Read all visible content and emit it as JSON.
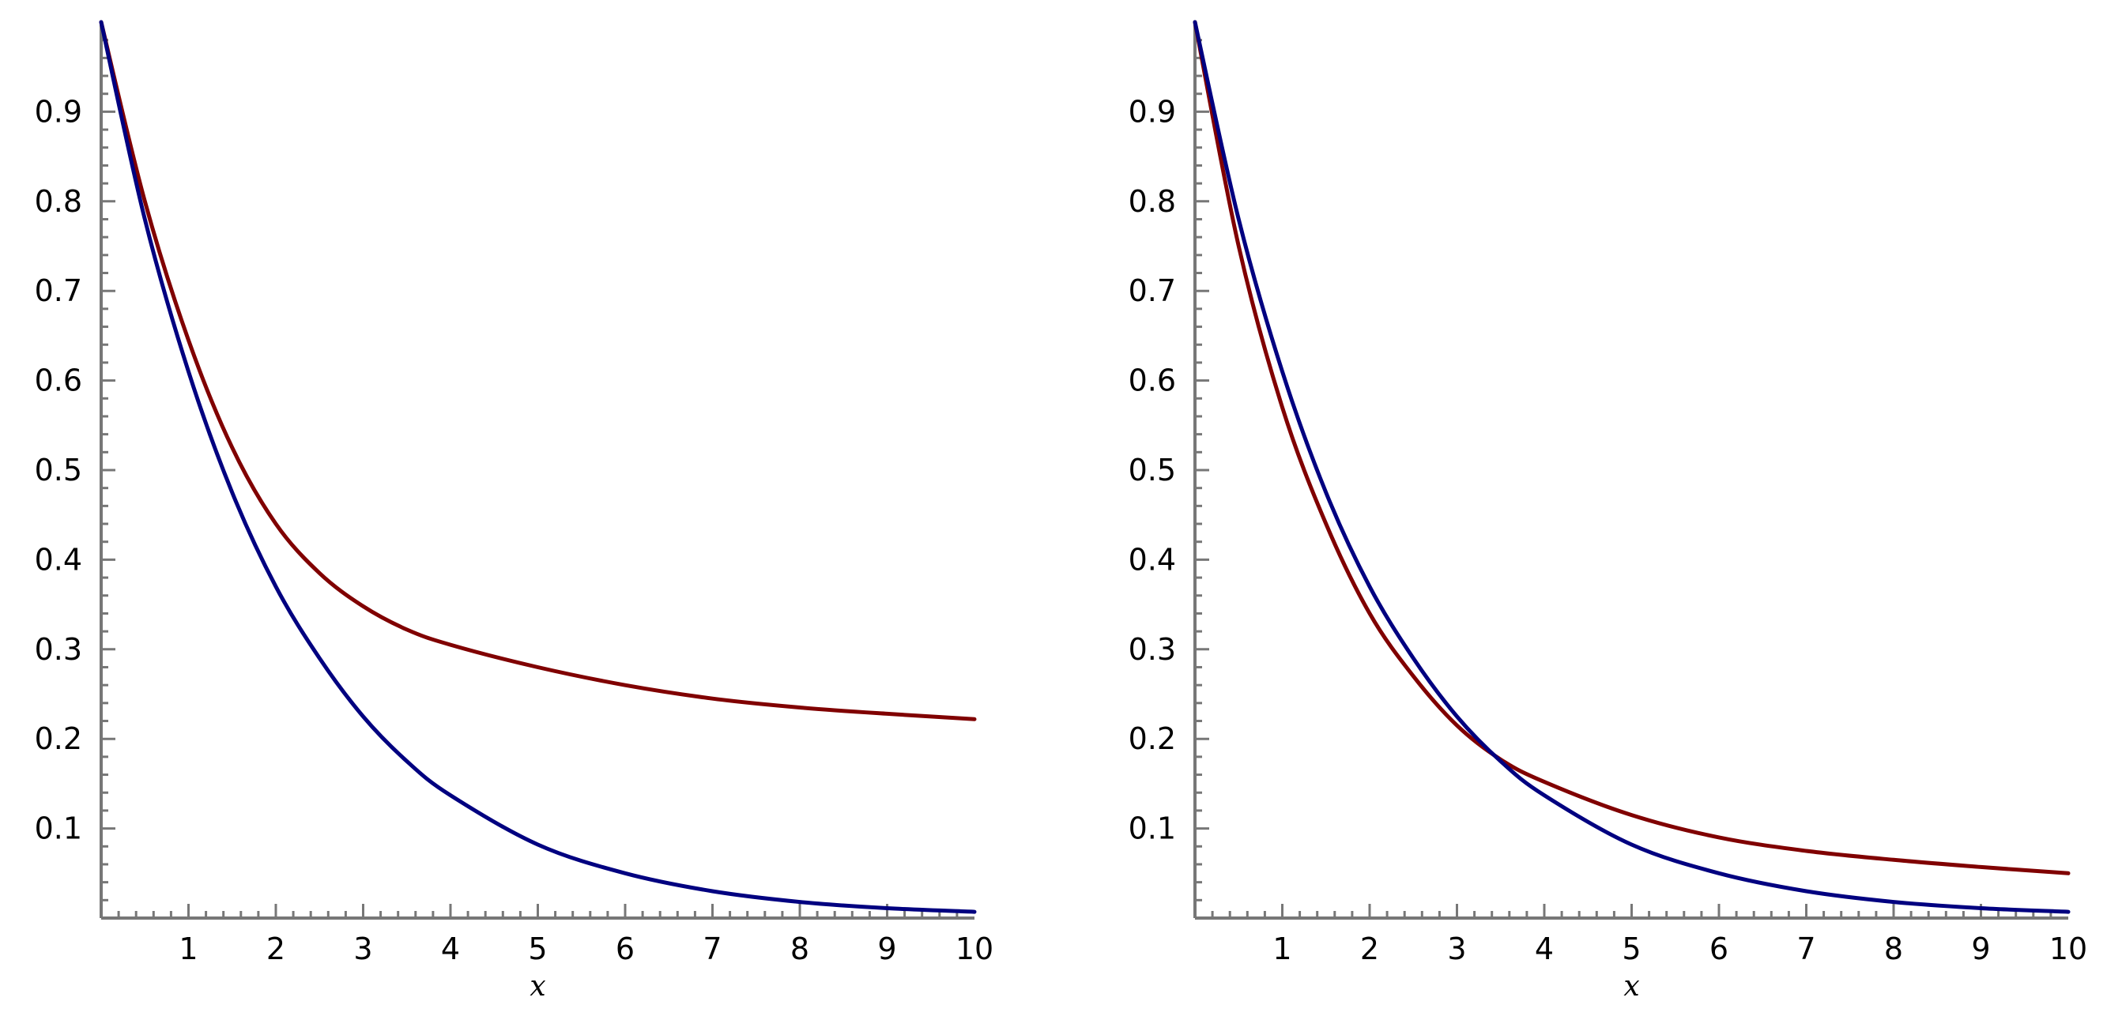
{
  "chart_data": [
    {
      "type": "line",
      "title": "",
      "xlabel": "x",
      "ylabel": "",
      "xlim": [
        0,
        10
      ],
      "ylim": [
        0,
        1
      ],
      "x_ticks": [
        1,
        2,
        3,
        4,
        5,
        6,
        7,
        8,
        9,
        10
      ],
      "x_tick_labels": [
        "1",
        "2",
        "3",
        "4",
        "5",
        "6",
        "7",
        "8",
        "9",
        "10"
      ],
      "y_ticks": [
        0.1,
        0.2,
        0.3,
        0.4,
        0.5,
        0.6,
        0.7,
        0.8,
        0.9
      ],
      "y_tick_labels": [
        "0.1",
        "0.2",
        "0.3",
        "0.4",
        "0.5",
        "0.6",
        "0.7",
        "0.8",
        "0.9"
      ],
      "grid": false,
      "series": [
        {
          "color": "#800000",
          "x": [
            0,
            0.5,
            1,
            1.5,
            2,
            2.5,
            3,
            3.5,
            4,
            5,
            6,
            7,
            8,
            9,
            10
          ],
          "values": [
            1.0,
            0.8,
            0.645,
            0.525,
            0.44,
            0.385,
            0.348,
            0.322,
            0.305,
            0.28,
            0.26,
            0.245,
            0.235,
            0.228,
            0.222
          ]
        },
        {
          "color": "#000080",
          "x": [
            0,
            0.5,
            1,
            1.5,
            2,
            2.5,
            3,
            3.5,
            4,
            5,
            6,
            7,
            8,
            9,
            10
          ],
          "values": [
            1.0,
            0.78,
            0.61,
            0.475,
            0.37,
            0.29,
            0.225,
            0.175,
            0.137,
            0.082,
            0.05,
            0.03,
            0.018,
            0.011,
            0.007
          ]
        }
      ]
    },
    {
      "type": "line",
      "title": "",
      "xlabel": "x",
      "ylabel": "",
      "xlim": [
        0,
        10
      ],
      "ylim": [
        0,
        1
      ],
      "x_ticks": [
        1,
        2,
        3,
        4,
        5,
        6,
        7,
        8,
        9,
        10
      ],
      "x_tick_labels": [
        "1",
        "2",
        "3",
        "4",
        "5",
        "6",
        "7",
        "8",
        "9",
        "10"
      ],
      "y_ticks": [
        0.1,
        0.2,
        0.3,
        0.4,
        0.5,
        0.6,
        0.7,
        0.8,
        0.9
      ],
      "y_tick_labels": [
        "0.1",
        "0.2",
        "0.3",
        "0.4",
        "0.5",
        "0.6",
        "0.7",
        "0.8",
        "0.9"
      ],
      "grid": false,
      "series": [
        {
          "color": "#800000",
          "x": [
            0,
            0.5,
            1,
            1.5,
            2,
            2.5,
            3,
            3.5,
            4,
            5,
            6,
            7,
            8,
            9,
            10
          ],
          "values": [
            1.0,
            0.75,
            0.57,
            0.44,
            0.34,
            0.27,
            0.215,
            0.177,
            0.152,
            0.115,
            0.09,
            0.075,
            0.065,
            0.057,
            0.05
          ]
        },
        {
          "color": "#000080",
          "x": [
            0,
            0.5,
            1,
            1.5,
            2,
            2.5,
            3,
            3.5,
            4,
            5,
            6,
            7,
            8,
            9,
            10
          ],
          "values": [
            1.0,
            0.78,
            0.61,
            0.475,
            0.37,
            0.29,
            0.225,
            0.175,
            0.137,
            0.082,
            0.05,
            0.03,
            0.018,
            0.011,
            0.007
          ]
        }
      ]
    }
  ]
}
